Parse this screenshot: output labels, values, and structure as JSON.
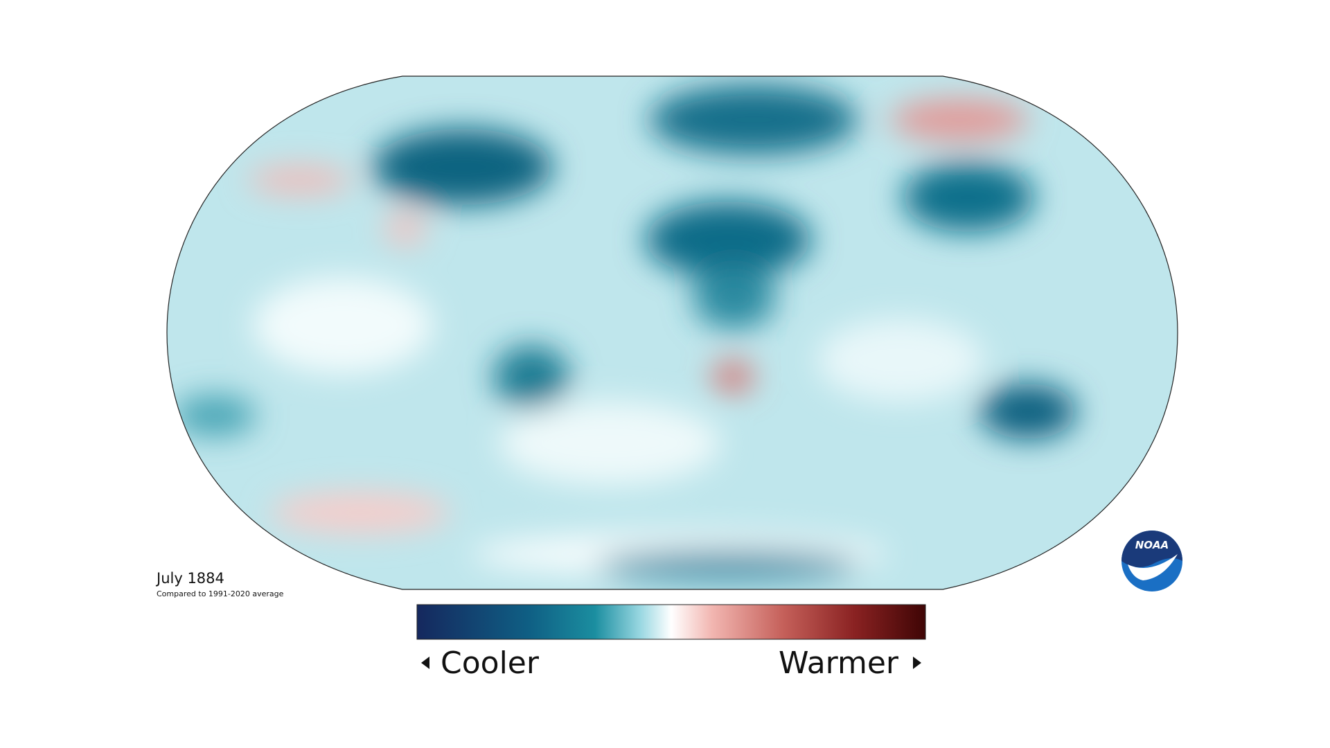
{
  "map": {
    "title": "July 1884",
    "subtitle": "Compared to 1991-2020 average"
  },
  "legend": {
    "low_label": "Cooler",
    "high_label": "Warmer"
  },
  "logo": {
    "text": "NOAA"
  }
}
